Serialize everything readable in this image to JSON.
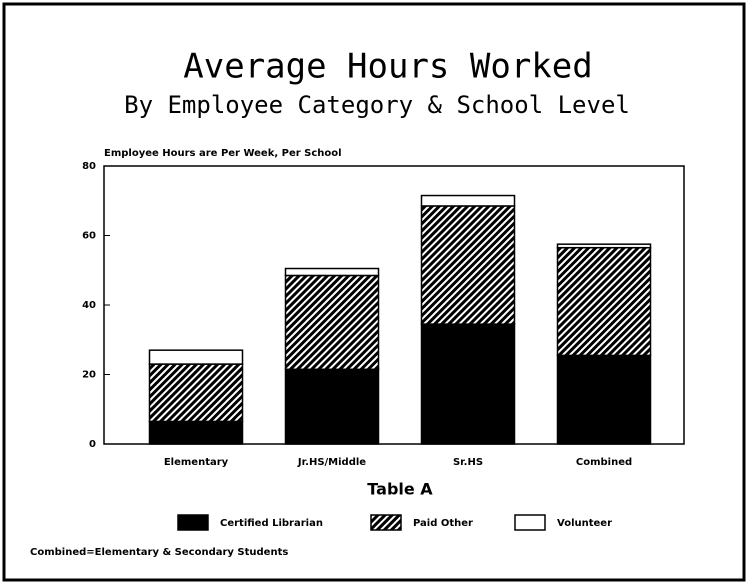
{
  "chart_data": {
    "type": "stacked_bar",
    "title": "Average Hours Worked",
    "subtitle": "By Employee Category & School Level",
    "annotation": "Employee Hours are Per Week, Per School",
    "x_label": "Table A",
    "footnote": "Combined=Elementary & Secondary Students",
    "categories": [
      "Elementary",
      "Jr.HS/Middle",
      "Sr.HS",
      "Combined"
    ],
    "series": [
      {
        "name": "Certified Librarian",
        "color": "#000000",
        "values": [
          6.5,
          21.5,
          34.5,
          25.5
        ]
      },
      {
        "name": "Paid Other",
        "color": "#000000",
        "pattern": "hatched",
        "values": [
          16.5,
          27,
          34,
          31
        ]
      },
      {
        "name": "Volunteer",
        "color": "#ffffff",
        "values": [
          4,
          2,
          3,
          1
        ]
      }
    ],
    "ylim": [
      0,
      80
    ],
    "yticks": [
      0,
      20,
      40,
      60,
      80
    ],
    "grid": false,
    "legend": "bottom"
  }
}
